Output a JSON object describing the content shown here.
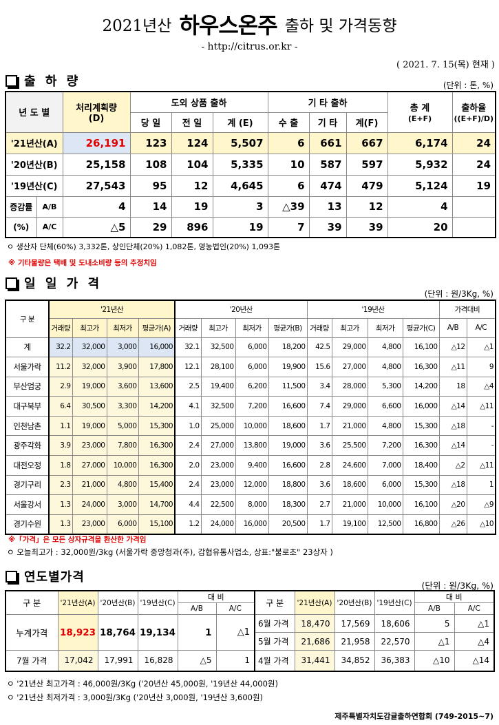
{
  "header": {
    "year": "2021년산",
    "product": "하우스온주",
    "subtitle": "출하 및 가격동향",
    "url": "- http://citrus.or.kr -",
    "date": "( 2021. 7. 15(목) 현재 )"
  },
  "shipping": {
    "section_title": "출 하 량",
    "unit": "(단위 : 톤, %)",
    "headers": {
      "year": "년 도 별",
      "plan": "처리계획량",
      "plan_sub": "(D)",
      "domestic": "도외 상품 출하",
      "other": "기 타 출하",
      "total": "총 계",
      "total_sub": "(E+F)",
      "ratio": "출하율",
      "ratio_sub": "((E+F)/D)",
      "daily": "당 일",
      "prev": "전 일",
      "sum_e": "계 (E)",
      "export": "수 출",
      "etc": "기 타",
      "sum_f": "계(F)"
    },
    "rows": [
      {
        "year": "'21년산(A)",
        "plan": "26,191",
        "daily": "123",
        "prev": "124",
        "sum_e": "5,507",
        "export": "6",
        "etc": "661",
        "sum_f": "667",
        "total": "6,174",
        "ratio": "24"
      },
      {
        "year": "'20년산(B)",
        "plan": "25,158",
        "daily": "108",
        "prev": "104",
        "sum_e": "5,335",
        "export": "10",
        "etc": "587",
        "sum_f": "597",
        "total": "5,932",
        "ratio": "24"
      },
      {
        "year": "'19년산(C)",
        "plan": "27,543",
        "daily": "95",
        "prev": "12",
        "sum_e": "4,645",
        "export": "6",
        "etc": "474",
        "sum_f": "479",
        "total": "5,124",
        "ratio": "19"
      }
    ],
    "diff_label1": "증감률",
    "diff_label2": "(%)",
    "diff_rows": [
      {
        "label": "A/B",
        "plan": "4",
        "daily": "14",
        "prev": "19",
        "sum_e": "3",
        "export": "△39",
        "etc": "13",
        "sum_f": "12",
        "total": "4",
        "ratio": ""
      },
      {
        "label": "A/C",
        "plan": "△5",
        "daily": "29",
        "prev": "896",
        "sum_e": "19",
        "export": "7",
        "etc": "39",
        "sum_f": "39",
        "total": "20",
        "ratio": ""
      }
    ],
    "note1": "ㅇ 생산자 단체(60%) 3,332톤,   상인단체(20%) 1,082톤,  영농법인(20%) 1,093톤",
    "note2": "※ 기타물량은 택배 및 도내소비량 등의 추정치임"
  },
  "daily_price": {
    "section_title": "일 일 가 격",
    "unit": "(단위 : 원/3Kg, %)",
    "headers": {
      "gubun": "구  분",
      "y21": "'21년산",
      "y20": "'20년산",
      "y19": "'19년산",
      "compare": "가격대비",
      "vol": "거래량",
      "max": "최고가",
      "min": "최저가",
      "avg_a": "평균가(A)",
      "avg_b": "평균가(B)",
      "avg_c": "평균가(C)",
      "ab": "A/B",
      "ac": "A/C"
    },
    "rows": [
      {
        "name": "계",
        "v21": "32.2",
        "max21": "32,000",
        "min21": "3,000",
        "avg21": "16,000",
        "v20": "32.1",
        "max20": "32,500",
        "min20": "6,000",
        "avg20": "18,200",
        "v19": "42.5",
        "max19": "29,000",
        "min19": "4,800",
        "avg19": "16,100",
        "ab": "△12",
        "ac": "△1"
      },
      {
        "name": "서울가락",
        "v21": "11.2",
        "max21": "32,000",
        "min21": "3,900",
        "avg21": "17,800",
        "v20": "12.1",
        "max20": "28,100",
        "min20": "6,000",
        "avg20": "19,900",
        "v19": "15.6",
        "max19": "27,000",
        "min19": "4,800",
        "avg19": "16,300",
        "ab": "△11",
        "ac": "9"
      },
      {
        "name": "부산엄궁",
        "v21": "2.9",
        "max21": "19,000",
        "min21": "3,600",
        "avg21": "13,600",
        "v20": "2.5",
        "max20": "19,400",
        "min20": "6,200",
        "avg20": "11,500",
        "v19": "3.4",
        "max19": "28,000",
        "min19": "5,300",
        "avg19": "14,200",
        "ab": "18",
        "ac": "△4"
      },
      {
        "name": "대구북부",
        "v21": "6.4",
        "max21": "30,500",
        "min21": "3,300",
        "avg21": "14,200",
        "v20": "4.1",
        "max20": "32,500",
        "min20": "7,200",
        "avg20": "16,600",
        "v19": "7.4",
        "max19": "29,000",
        "min19": "6,600",
        "avg19": "16,000",
        "ab": "△14",
        "ac": "△11"
      },
      {
        "name": "인천남촌",
        "v21": "1.1",
        "max21": "19,000",
        "min21": "5,000",
        "avg21": "15,300",
        "v20": "1.0",
        "max20": "25,000",
        "min20": "10,000",
        "avg20": "18,600",
        "v19": "1.7",
        "max19": "21,000",
        "min19": "4,800",
        "avg19": "15,300",
        "ab": "△18",
        "ac": "-"
      },
      {
        "name": "광주각화",
        "v21": "3.9",
        "max21": "23,000",
        "min21": "7,800",
        "avg21": "16,300",
        "v20": "2.4",
        "max20": "27,000",
        "min20": "13,800",
        "avg20": "19,000",
        "v19": "3.6",
        "max19": "25,500",
        "min19": "7,200",
        "avg19": "16,300",
        "ab": "△14",
        "ac": "-"
      },
      {
        "name": "대전오정",
        "v21": "1.8",
        "max21": "27,000",
        "min21": "10,000",
        "avg21": "16,300",
        "v20": "2.0",
        "max20": "23,000",
        "min20": "9,400",
        "avg20": "16,600",
        "v19": "2.8",
        "max19": "24,600",
        "min19": "7,000",
        "avg19": "18,400",
        "ab": "△2",
        "ac": "△11"
      },
      {
        "name": "경기구리",
        "v21": "2.3",
        "max21": "21,000",
        "min21": "4,800",
        "avg21": "15,400",
        "v20": "2.4",
        "max20": "23,000",
        "min20": "12,000",
        "avg20": "18,800",
        "v19": "3.6",
        "max19": "18,600",
        "min19": "6,000",
        "avg19": "15,300",
        "ab": "△18",
        "ac": "1"
      },
      {
        "name": "서울강서",
        "v21": "1.3",
        "max21": "24,000",
        "min21": "3,000",
        "avg21": "14,700",
        "v20": "4.4",
        "max20": "22,500",
        "min20": "8,000",
        "avg20": "18,300",
        "v19": "2.7",
        "max19": "21,000",
        "min19": "10,000",
        "avg19": "16,100",
        "ab": "△20",
        "ac": "△9"
      },
      {
        "name": "경기수원",
        "v21": "1.3",
        "max21": "23,000",
        "min21": "6,000",
        "avg21": "15,100",
        "v20": "1.2",
        "max20": "24,000",
        "min20": "16,000",
        "avg20": "20,500",
        "v19": "1.7",
        "max19": "19,100",
        "min19": "12,500",
        "avg19": "16,800",
        "ab": "△26",
        "ac": "△10"
      }
    ],
    "note1": "※「가격」은 모든 상자규격을 환산한 가격임",
    "note2": "ㅇ 오늘최고가 : 32,000원/3kg (서울가락  중앙청과(주),  감협유통사업소, 상표:\"불로초\" 23상자 )"
  },
  "yearly_price": {
    "section_title": "연도별가격",
    "unit": "(단위 : 원/3Kg, %)",
    "headers": {
      "gubun": "구  분",
      "y21": "'21년산(A)",
      "y20": "'20년산(B)",
      "y19": "'19년산(C)",
      "compare": "대  비",
      "ab": "A/B",
      "ac": "A/C"
    },
    "left_rows": [
      {
        "name": "누계가격",
        "a": "18,923",
        "b": "18,764",
        "c": "19,134",
        "ab": "1",
        "ac": "△1"
      },
      {
        "name": "7월 가격",
        "a": "17,042",
        "b": "17,991",
        "c": "16,828",
        "ab": "△5",
        "ac": "1"
      }
    ],
    "right_rows": [
      {
        "name": "6월 가격",
        "a": "18,470",
        "b": "17,569",
        "c": "18,606",
        "ab": "5",
        "ac": "△1"
      },
      {
        "name": "5월 가격",
        "a": "21,686",
        "b": "21,958",
        "c": "22,570",
        "ab": "△1",
        "ac": "△4"
      },
      {
        "name": "4월 가격",
        "a": "31,441",
        "b": "34,852",
        "c": "36,383",
        "ab": "△10",
        "ac": "△14"
      }
    ],
    "note1": "ㅇ '21년산 최고가격 : 46,000원/3Kg ('20년산 45,000원, '19년산 44,000원)",
    "note2": "ㅇ '21년산 최저가격 :  3,000원/3Kg ('20년산  3,000원, '19년산 3,600원)"
  },
  "footer": "제주특별자치도감귤출하연합회 (749-2015~7)"
}
